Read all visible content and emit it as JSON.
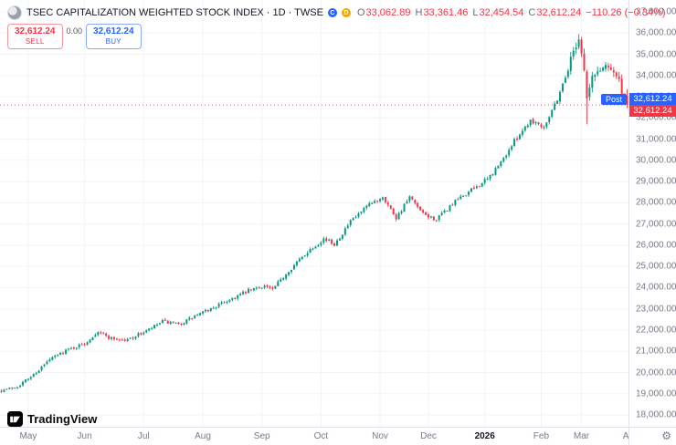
{
  "header": {
    "symbol_title": "TSEC CAPITALIZATION WEIGHTED STOCK INDEX · 1D · TWSE",
    "flags": [
      {
        "text": "C",
        "color": "#2962ff"
      },
      {
        "text": "D",
        "color": "#f7a600"
      }
    ],
    "ohlc": {
      "o_label": "O",
      "o": "33,062.89",
      "h_label": "H",
      "h": "33,361.46",
      "l_label": "L",
      "l": "32,454.54",
      "c_label": "C",
      "c": "32,612.24",
      "change": "−110.26 (−0.34%)"
    }
  },
  "trade_buttons": {
    "sell_price": "32,612.24",
    "sell_label": "SELL",
    "spread": "0.00",
    "buy_price": "32,612.24",
    "buy_label": "BUY"
  },
  "price_axis": {
    "post_label": "Post",
    "post_price": "32,612.24",
    "last_price": "32,612.24",
    "labels": [
      {
        "text": "37,000.00",
        "value": 37000
      },
      {
        "text": "36,000.00",
        "value": 36000
      },
      {
        "text": "35,000.00",
        "value": 35000
      },
      {
        "text": "34,000.00",
        "value": 34000
      },
      {
        "text": "33,000.00",
        "value": 33000
      },
      {
        "text": "32,000.00",
        "value": 32000
      },
      {
        "text": "31,000.00",
        "value": 31000
      },
      {
        "text": "30,000.00",
        "value": 30000
      },
      {
        "text": "29,000.00",
        "value": 29000
      },
      {
        "text": "28,000.00",
        "value": 28000
      },
      {
        "text": "27,000.00",
        "value": 27000
      },
      {
        "text": "26,000.00",
        "value": 26000
      },
      {
        "text": "25,000.00",
        "value": 25000
      },
      {
        "text": "24,000.00",
        "value": 24000
      },
      {
        "text": "23,000.00",
        "value": 23000
      },
      {
        "text": "22,000.00",
        "value": 22000
      },
      {
        "text": "21,000.00",
        "value": 21000
      },
      {
        "text": "20,000.00",
        "value": 20000
      },
      {
        "text": "19,000.00",
        "value": 19000
      },
      {
        "text": "18,000.00",
        "value": 18000
      }
    ]
  },
  "time_axis": {
    "labels": [
      {
        "text": "May",
        "index": 10,
        "bold": false
      },
      {
        "text": "Jun",
        "index": 31,
        "bold": false
      },
      {
        "text": "Jul",
        "index": 53,
        "bold": false
      },
      {
        "text": "Aug",
        "index": 75,
        "bold": false
      },
      {
        "text": "Sep",
        "index": 97,
        "bold": false
      },
      {
        "text": "Oct",
        "index": 119,
        "bold": false
      },
      {
        "text": "Nov",
        "index": 141,
        "bold": false
      },
      {
        "text": "Dec",
        "index": 159,
        "bold": false
      },
      {
        "text": "2026",
        "index": 180,
        "bold": true
      },
      {
        "text": "Feb",
        "index": 201,
        "bold": false
      },
      {
        "text": "Mar",
        "index": 216,
        "bold": false
      },
      {
        "text": "Apr",
        "index": 234,
        "bold": false
      }
    ]
  },
  "footer": {
    "brand": "TradingView"
  },
  "icons": {
    "gear": "⚙"
  },
  "colors": {
    "up": "#089981",
    "down": "#f23645",
    "accent_blue": "#2962ff",
    "axis_text": "#787b86",
    "title_text": "#131722",
    "border": "#e0e3eb",
    "grid": "#f1f3f8"
  },
  "chart_data": {
    "type": "candlestick",
    "title": "TSEC CAPITALIZATION WEIGHTED STOCK INDEX",
    "interval": "1D",
    "exchange": "TWSE",
    "session_note": "Post-market price shown",
    "last_candle": {
      "open": 33062.89,
      "high": 33361.46,
      "low": 32454.54,
      "close": 32612.24
    },
    "change": -110.26,
    "change_pct": -0.34,
    "y_range": [
      17440,
      37560
    ],
    "price_ticks": [
      18000,
      19000,
      20000,
      21000,
      22000,
      23000,
      24000,
      25000,
      26000,
      27000,
      28000,
      29000,
      30000,
      31000,
      32000,
      33000,
      34000,
      35000,
      36000,
      37000
    ],
    "x_axis_months": [
      "May",
      "Jun",
      "Jul",
      "Aug",
      "Sep",
      "Oct",
      "Nov",
      "Dec",
      "2026",
      "Feb",
      "Mar",
      "Apr"
    ],
    "candle_count": 234,
    "trend_keyframes": [
      [
        0,
        19150
      ],
      [
        6,
        19350
      ],
      [
        12,
        19900
      ],
      [
        18,
        20600
      ],
      [
        24,
        21050
      ],
      [
        31,
        21350
      ],
      [
        36,
        21950
      ],
      [
        40,
        21650
      ],
      [
        46,
        21500
      ],
      [
        54,
        21950
      ],
      [
        60,
        22400
      ],
      [
        66,
        22250
      ],
      [
        72,
        22650
      ],
      [
        78,
        23000
      ],
      [
        86,
        23500
      ],
      [
        92,
        23850
      ],
      [
        98,
        24100
      ],
      [
        101,
        23900
      ],
      [
        107,
        24800
      ],
      [
        114,
        25700
      ],
      [
        120,
        26300
      ],
      [
        124,
        26050
      ],
      [
        130,
        27100
      ],
      [
        136,
        27800
      ],
      [
        142,
        28300
      ],
      [
        147,
        27300
      ],
      [
        152,
        28250
      ],
      [
        157,
        27450
      ],
      [
        162,
        27200
      ],
      [
        168,
        27950
      ],
      [
        175,
        28600
      ],
      [
        181,
        29100
      ],
      [
        186,
        29900
      ],
      [
        192,
        31100
      ],
      [
        197,
        31900
      ],
      [
        202,
        31600
      ],
      [
        207,
        32900
      ],
      [
        211,
        34300
      ],
      [
        213,
        35200
      ],
      [
        215,
        35800
      ],
      [
        217,
        34300
      ],
      [
        218,
        32900
      ],
      [
        220,
        33900
      ],
      [
        223,
        34300
      ],
      [
        226,
        34550
      ],
      [
        228,
        34200
      ],
      [
        230,
        33700
      ],
      [
        232,
        32722
      ],
      [
        233,
        32612.24
      ]
    ],
    "anomalies": [
      {
        "index": 215,
        "high": 35950
      },
      {
        "index": 218,
        "low": 31700
      }
    ],
    "up_color": "#089981",
    "down_color": "#f23645",
    "grid": "faint",
    "legend_position": "top-left"
  }
}
